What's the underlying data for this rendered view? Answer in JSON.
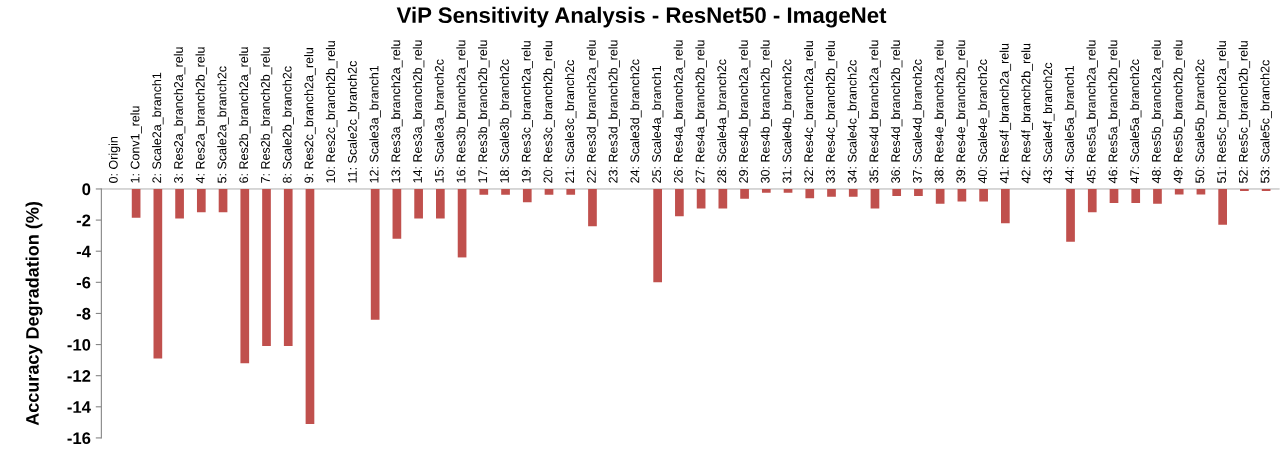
{
  "chart_data": {
    "type": "bar",
    "title": "ViP Sensitivity Analysis - ResNet50 - ImageNet",
    "ylabel": "Accuracy Degradation (%)",
    "categories": [
      "0: Origin",
      "1: Conv1_relu",
      "2: Scale2a_branch1",
      "3: Res2a_branch2a_relu",
      "4: Res2a_branch2b_relu",
      "5: Scale2a_branch2c",
      "6: Res2b_branch2a_relu",
      "7: Res2b_branch2b_relu",
      "8: Scale2b_branch2c",
      "9: Res2c_branch2a_relu",
      "10: Res2c_branch2b_relu",
      "11: Scale2c_branch2c",
      "12: Scale3a_branch1",
      "13: Res3a_branch2a_relu",
      "14: Res3a_branch2b_relu",
      "15: Scale3a_branch2c",
      "16: Res3b_branch2a_relu",
      "17: Res3b_branch2b_relu",
      "18: Scale3b_branch2c",
      "19: Res3c_branch2a_relu",
      "20: Res3c_branch2b_relu",
      "21: Scale3c_branch2c",
      "22: Res3d_branch2a_relu",
      "23: Res3d_branch2b_relu",
      "24: Scale3d_branch2c",
      "25: Scale4a_branch1",
      "26: Res4a_branch2a_relu",
      "27: Res4a_branch2b_relu",
      "28: Scale4a_branch2c",
      "29: Res4b_branch2a_relu",
      "30: Res4b_branch2b_relu",
      "31: Scale4b_branch2c",
      "32: Res4c_branch2a_relu",
      "33: Res4c_branch2b_relu",
      "34: Scale4c_branch2c",
      "35: Res4d_branch2a_relu",
      "36: Res4d_branch2b_relu",
      "37: Scale4d_branch2c",
      "38: Res4e_branch2a_relu",
      "39: Res4e_branch2b_relu",
      "40: Scale4e_branch2c",
      "41: Res4f_branch2a_relu",
      "42: Res4f_branch2b_relu",
      "43: Scale4f_branch2c",
      "44: Scale5a_branch1",
      "45: Res5a_branch2a_relu",
      "46: Res5a_branch2b_relu",
      "47: Scale5a_branch2c",
      "48: Res5b_branch2a_relu",
      "49: Res5b_branch2b_relu",
      "50: Scale5b_branch2c",
      "51: Res5c_branch2a_relu",
      "52: Res5c_branch2b_relu",
      "53: Scale5c_branch2c"
    ],
    "values": [
      0,
      -1.85,
      -10.9,
      -1.9,
      -1.5,
      -1.5,
      -11.2,
      -10.1,
      -10.1,
      -15.1,
      0,
      0,
      -8.4,
      -3.2,
      -1.9,
      -1.9,
      -4.4,
      -0.37,
      -0.37,
      -0.85,
      -0.37,
      -0.37,
      -2.4,
      0,
      0,
      -6.0,
      -1.75,
      -1.25,
      -1.25,
      -0.63,
      -0.24,
      -0.24,
      -0.6,
      -0.5,
      -0.5,
      -1.25,
      -0.45,
      -0.45,
      -0.95,
      -0.8,
      -0.8,
      -2.2,
      0,
      0,
      -3.4,
      -1.5,
      -0.9,
      -0.9,
      -0.95,
      -0.35,
      -0.35,
      -2.3,
      -0.13,
      -0.13
    ],
    "color": "#c0504d",
    "ylim": [
      -16,
      0
    ],
    "yticks": [
      -16,
      -14,
      -12,
      -10,
      -8,
      -6,
      -4,
      -2,
      0
    ],
    "grid": false,
    "legend": false
  }
}
